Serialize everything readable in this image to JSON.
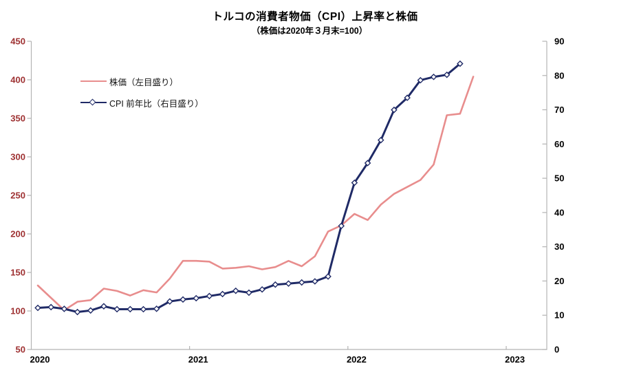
{
  "chart_data": {
    "type": "line",
    "title": "トルコの消費者物価（CPI）上昇率と株価",
    "subtitle": "（株価は2020年３月末=100）",
    "grid": false,
    "legend_position": "top-left-inside",
    "axis_line_color": "#b3b3b3",
    "x": [
      "2020-01",
      "2020-02",
      "2020-03",
      "2020-04",
      "2020-05",
      "2020-06",
      "2020-07",
      "2020-08",
      "2020-09",
      "2020-10",
      "2020-11",
      "2020-12",
      "2021-01",
      "2021-02",
      "2021-03",
      "2021-04",
      "2021-05",
      "2021-06",
      "2021-07",
      "2021-08",
      "2021-09",
      "2021-10",
      "2021-11",
      "2021-12",
      "2022-01",
      "2022-02",
      "2022-03",
      "2022-04",
      "2022-05",
      "2022-06",
      "2022-07",
      "2022-08",
      "2022-09",
      "2022-10"
    ],
    "x_tick_labels": [
      {
        "label": "2020",
        "month_index": 0
      },
      {
        "label": "2021",
        "month_index": 12
      },
      {
        "label": "2022",
        "month_index": 24
      },
      {
        "label": "2023",
        "month_index": 36
      }
    ],
    "series": [
      {
        "name": "株価（左目盛り）",
        "axis": "left",
        "color": "#e88d8d",
        "line_width": 2.6,
        "marker": "none",
        "values": [
          133,
          117,
          101,
          112,
          114,
          129,
          126,
          120,
          127,
          124,
          142,
          165,
          165,
          164,
          155,
          156,
          158,
          154,
          157,
          165,
          158,
          171,
          203,
          211,
          226,
          218,
          238,
          252,
          261,
          270,
          290,
          354,
          356,
          404
        ]
      },
      {
        "name": "CPI 前年比（右目盛り）",
        "axis": "right",
        "color": "#1f2a66",
        "line_width": 3,
        "marker": "diamond",
        "marker_fill": "#ffffff",
        "values": [
          12.15,
          12.37,
          11.86,
          10.94,
          11.39,
          12.62,
          11.76,
          11.77,
          11.75,
          11.89,
          14.03,
          14.6,
          14.97,
          15.61,
          16.19,
          17.14,
          16.59,
          17.53,
          18.95,
          19.25,
          19.58,
          19.89,
          21.31,
          36.08,
          48.69,
          54.44,
          61.14,
          69.97,
          73.5,
          78.62,
          79.6,
          80.21,
          83.45
        ]
      }
    ],
    "left_axis": {
      "min": 50,
      "max": 450,
      "step": 50,
      "ticks": [
        50,
        100,
        150,
        200,
        250,
        300,
        350,
        400,
        450
      ],
      "label_color": "#9e3132"
    },
    "right_axis": {
      "min": 0,
      "max": 90,
      "step": 10,
      "ticks": [
        0,
        10,
        20,
        30,
        40,
        50,
        60,
        70,
        80,
        90
      ],
      "label_color": "#000000"
    }
  }
}
